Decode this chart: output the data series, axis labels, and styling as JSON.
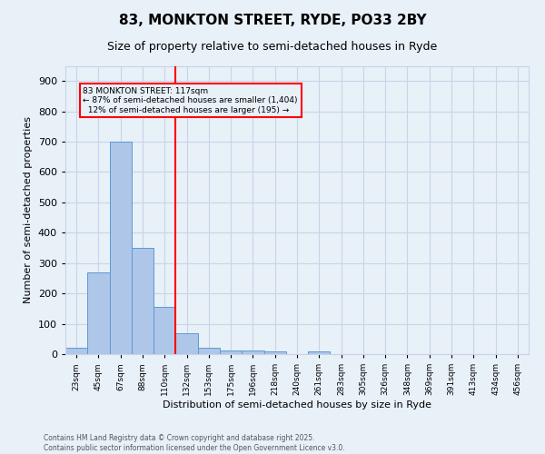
{
  "title": "83, MONKTON STREET, RYDE, PO33 2BY",
  "subtitle": "Size of property relative to semi-detached houses in Ryde",
  "xlabel": "Distribution of semi-detached houses by size in Ryde",
  "ylabel": "Number of semi-detached properties",
  "footer_line1": "Contains HM Land Registry data © Crown copyright and database right 2025.",
  "footer_line2": "Contains public sector information licensed under the Open Government Licence v3.0.",
  "bin_labels": [
    "23sqm",
    "45sqm",
    "67sqm",
    "88sqm",
    "110sqm",
    "132sqm",
    "153sqm",
    "175sqm",
    "196sqm",
    "218sqm",
    "240sqm",
    "261sqm",
    "283sqm",
    "305sqm",
    "326sqm",
    "348sqm",
    "369sqm",
    "391sqm",
    "413sqm",
    "434sqm",
    "456sqm"
  ],
  "bar_values": [
    20,
    270,
    700,
    350,
    155,
    70,
    22,
    12,
    12,
    8,
    0,
    8,
    0,
    0,
    0,
    0,
    0,
    0,
    0,
    0,
    0
  ],
  "bar_color": "#aec6e8",
  "bar_edge_color": "#5b9bd5",
  "grid_color": "#c8d4e8",
  "background_color": "#e8f0f8",
  "annotation_line_color": "red",
  "annotation_box_text": "83 MONKTON STREET: 117sqm\n← 87% of semi-detached houses are smaller (1,404)\n  12% of semi-detached houses are larger (195) →",
  "annotation_box_color": "red",
  "ylim": [
    0,
    950
  ],
  "yticks": [
    0,
    100,
    200,
    300,
    400,
    500,
    600,
    700,
    800,
    900
  ],
  "red_line_x": 4.5
}
